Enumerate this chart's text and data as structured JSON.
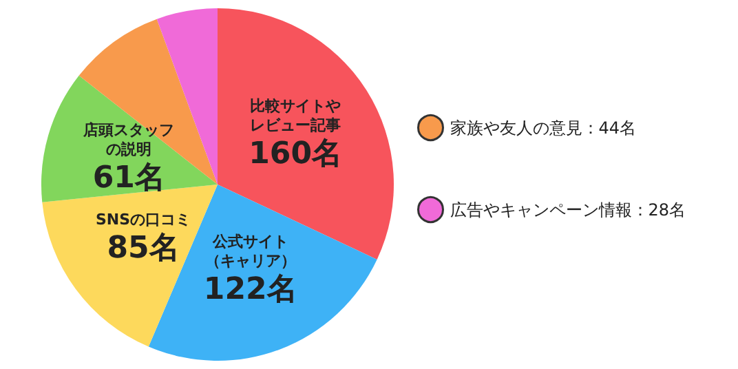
{
  "chart_data": {
    "type": "pie",
    "categories": [
      "比較サイトやレビュー記事",
      "公式サイト（キャリア）",
      "SNSの口コミ",
      "店頭スタッフの説明",
      "家族や友人の意見",
      "広告やキャンペーン情報"
    ],
    "values": [
      160,
      122,
      85,
      61,
      44,
      28
    ],
    "colors": [
      "#f7545c",
      "#3eb2f6",
      "#fdd95c",
      "#82d65c",
      "#f89a4c",
      "#f06ad8"
    ],
    "value_labels": [
      "160名",
      "122名",
      "85名",
      "61名",
      "44名",
      "28名"
    ],
    "legend": "right"
  }
}
